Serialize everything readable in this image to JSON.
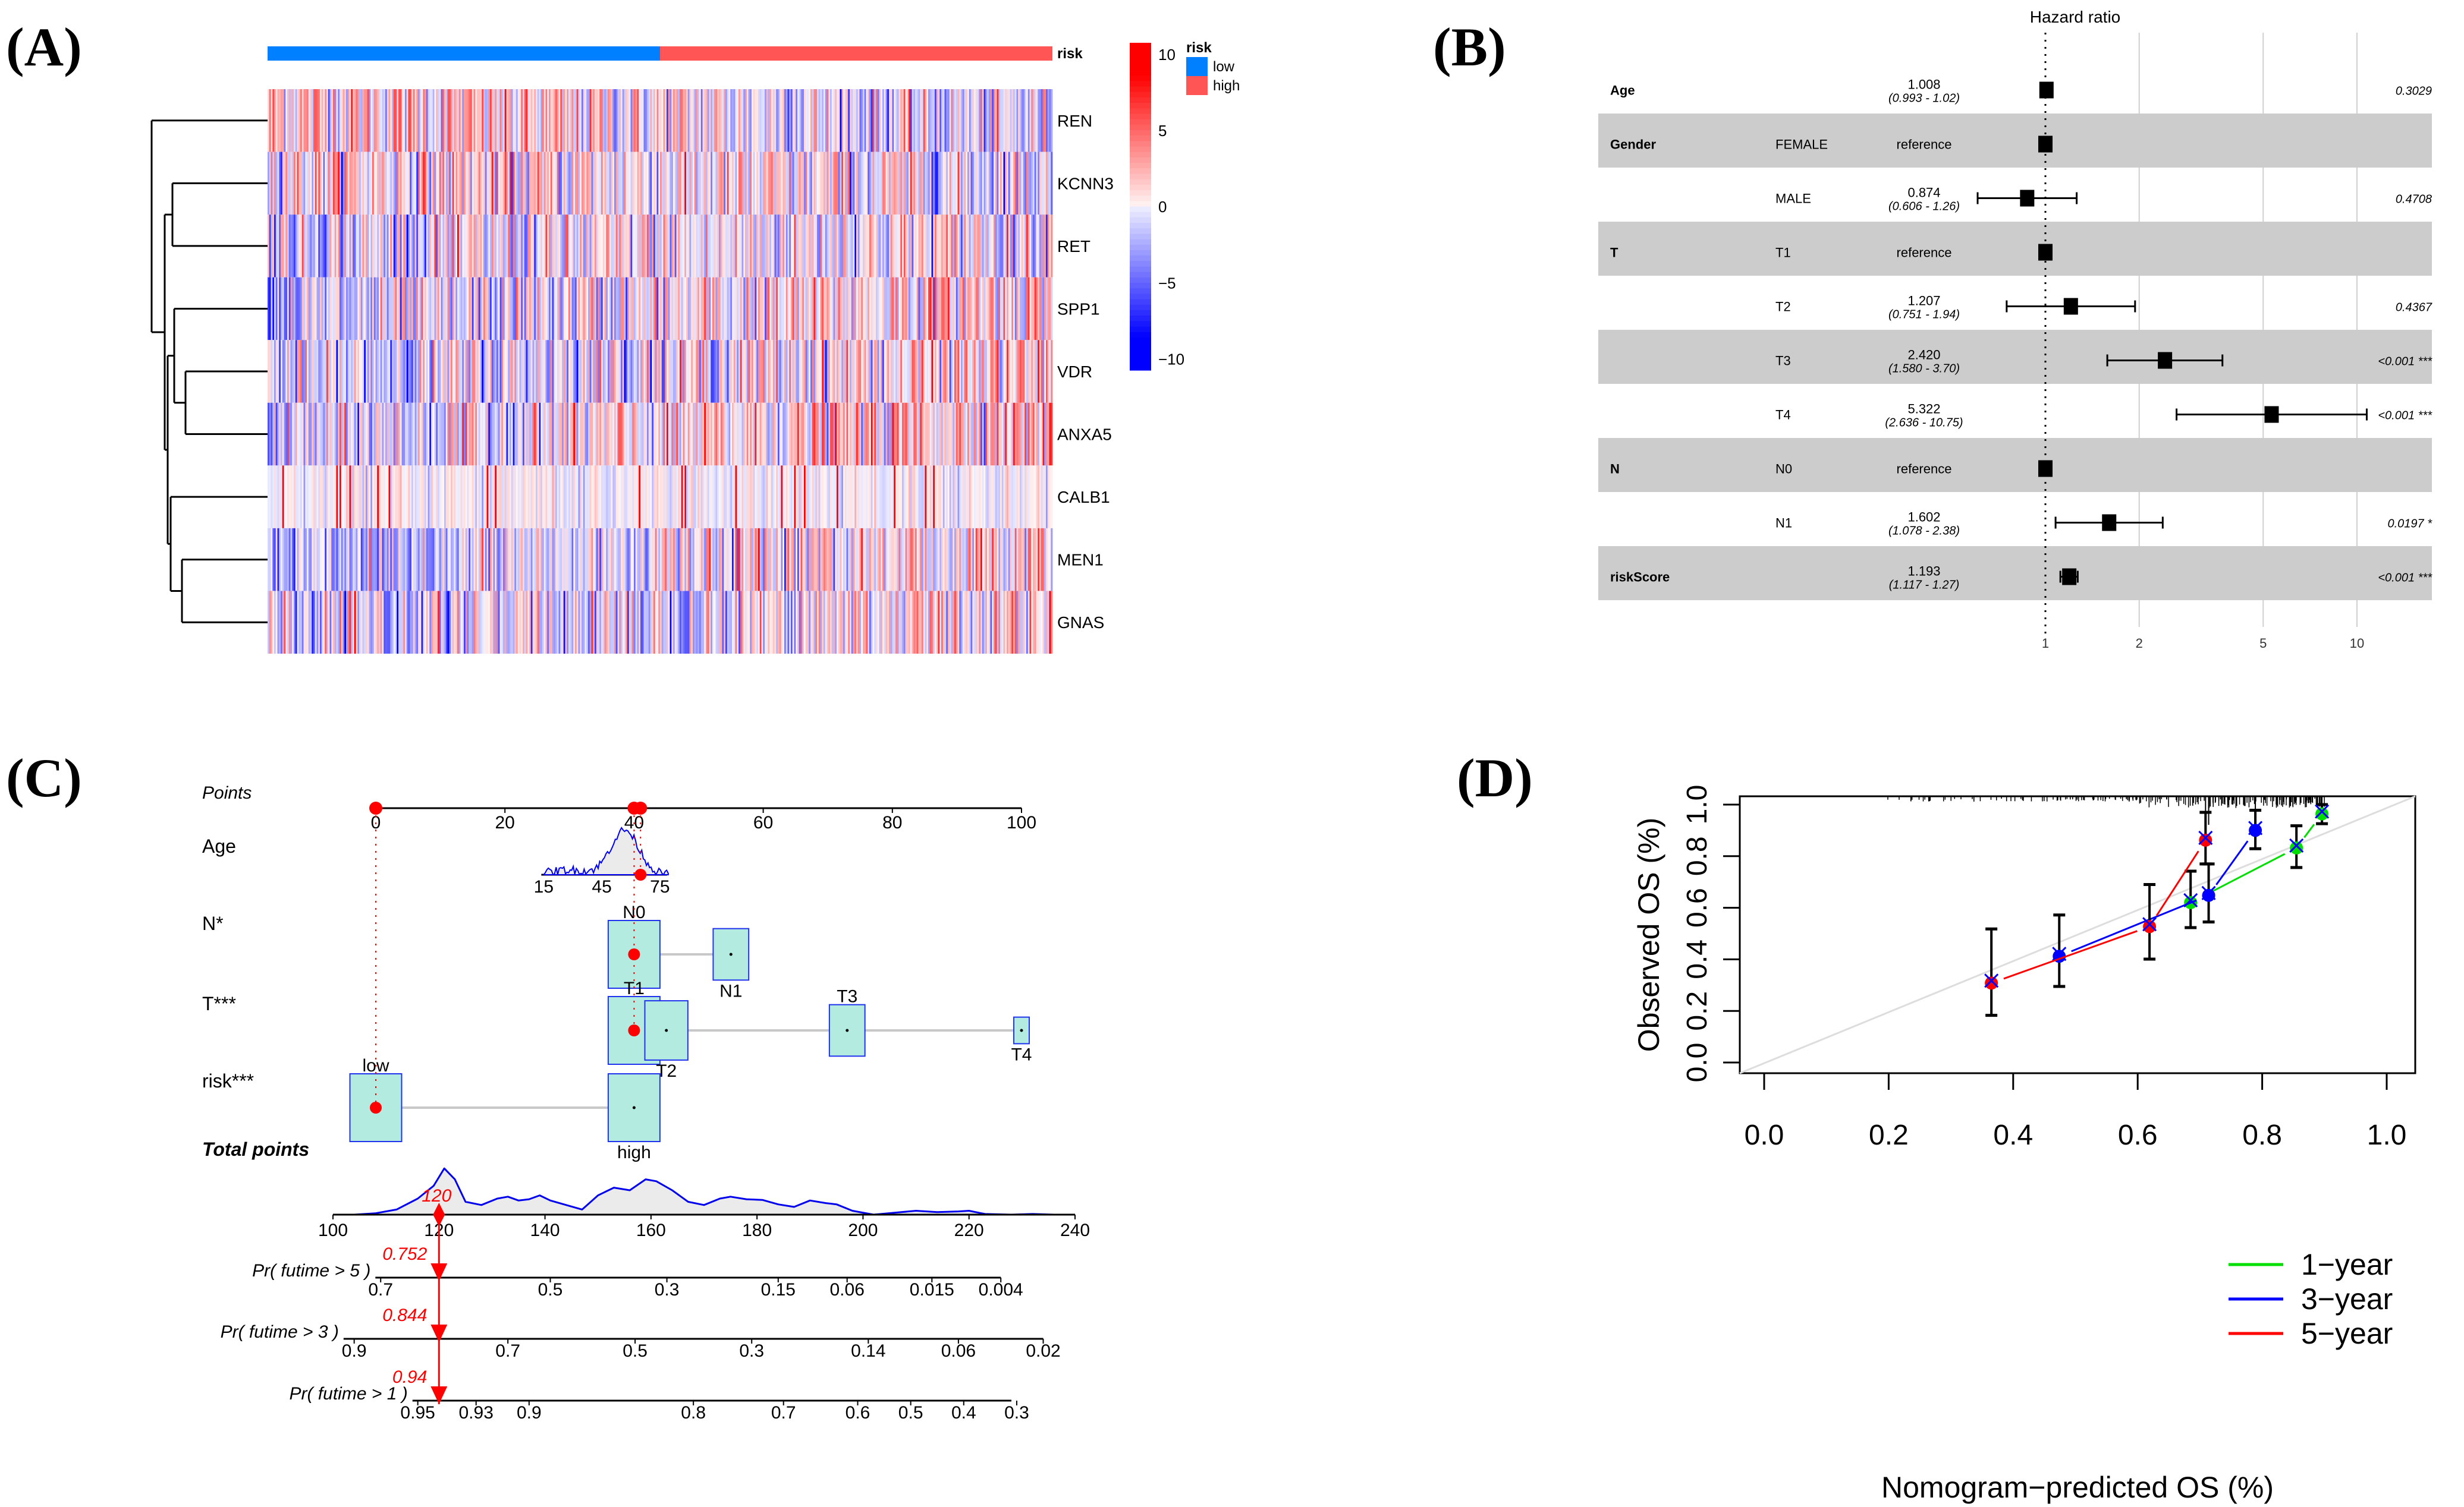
{
  "panels": {
    "A": "(A)",
    "B": "(B)",
    "C": "(C)",
    "D": "(D)"
  },
  "chart_data": [
    {
      "panel": "A",
      "type": "heatmap",
      "title": "",
      "rows": [
        "REN",
        "KCNN3",
        "RET",
        "SPP1",
        "VDR",
        "ANXA5",
        "CALB1",
        "MEN1",
        "GNAS"
      ],
      "column_annotation": {
        "name": "risk",
        "groups": [
          {
            "label": "low",
            "color": "#0080ff",
            "fraction": 0.5
          },
          {
            "label": "high",
            "color": "#ff5555",
            "fraction": 0.5
          }
        ]
      },
      "row_trend": [
        {
          "gene": "REN",
          "low_mean": 1.2,
          "high_mean": -0.8
        },
        {
          "gene": "KCNN3",
          "low_mean": 0.8,
          "high_mean": -0.4
        },
        {
          "gene": "RET",
          "low_mean": -0.6,
          "high_mean": 0.4
        },
        {
          "gene": "SPP1",
          "low_mean": -1.4,
          "high_mean": 1.2
        },
        {
          "gene": "VDR",
          "low_mean": -1.0,
          "high_mean": 0.9
        },
        {
          "gene": "ANXA5",
          "low_mean": -0.9,
          "high_mean": 1.5
        },
        {
          "gene": "CALB1",
          "low_mean": -0.1,
          "high_mean": 0.0
        },
        {
          "gene": "MEN1",
          "low_mean": -1.3,
          "high_mean": 1.0
        },
        {
          "gene": "GNAS",
          "low_mean": -1.2,
          "high_mean": 0.9
        }
      ],
      "color_scale": {
        "min": -10,
        "max": 10,
        "low_color": "#0000ff",
        "mid_color": "#f5f5ff",
        "high_color": "#ff0000",
        "ticks": [
          "10",
          "5",
          "0",
          "−5",
          "−10"
        ],
        "tick_values": [
          10,
          5,
          0,
          -5,
          -10
        ]
      },
      "legend": {
        "title": "risk",
        "items": [
          {
            "label": "low",
            "color": "#0080ff"
          },
          {
            "label": "high",
            "color": "#ff5555"
          }
        ]
      },
      "annotation_label": "risk",
      "dendrogram": "row clustering: REN | ((KCNN3,RET),((SPP1,(VDR,ANXA5)),(CALB1,(MEN1,GNAS))))"
    },
    {
      "panel": "B",
      "type": "forest",
      "title": "Hazard ratio",
      "xscale": "log",
      "xticks": [
        1,
        2,
        5,
        10
      ],
      "reference_line": 1,
      "rows": [
        {
          "var": "Age",
          "level": "",
          "hr": 1.008,
          "lo": 0.993,
          "hi": 1.02,
          "hr_text": "1.008",
          "ci_text": "(0.993 -  1.02)",
          "p": "0.3029",
          "shaded": false
        },
        {
          "var": "Gender",
          "level": "FEMALE",
          "hr": 1.0,
          "lo": null,
          "hi": null,
          "hr_text": "reference",
          "ci_text": "",
          "p": "",
          "shaded": true
        },
        {
          "var": "",
          "level": "MALE",
          "hr": 0.874,
          "lo": 0.606,
          "hi": 1.26,
          "hr_text": "0.874",
          "ci_text": "(0.606 -  1.26)",
          "p": "0.4708",
          "shaded": false
        },
        {
          "var": "T",
          "level": "T1",
          "hr": 1.0,
          "lo": null,
          "hi": null,
          "hr_text": "reference",
          "ci_text": "",
          "p": "",
          "shaded": true
        },
        {
          "var": "",
          "level": "T2",
          "hr": 1.207,
          "lo": 0.751,
          "hi": 1.94,
          "hr_text": "1.207",
          "ci_text": "(0.751 -  1.94)",
          "p": "0.4367",
          "shaded": false
        },
        {
          "var": "",
          "level": "T3",
          "hr": 2.42,
          "lo": 1.58,
          "hi": 3.7,
          "hr_text": "2.420",
          "ci_text": "(1.580 -  3.70)",
          "p": "<0.001 ***",
          "shaded": true
        },
        {
          "var": "",
          "level": "T4",
          "hr": 5.322,
          "lo": 2.636,
          "hi": 10.75,
          "hr_text": "5.322",
          "ci_text": "(2.636 - 10.75)",
          "p": "<0.001 ***",
          "shaded": false
        },
        {
          "var": "N",
          "level": "N0",
          "hr": 1.0,
          "lo": null,
          "hi": null,
          "hr_text": "reference",
          "ci_text": "",
          "p": "",
          "shaded": true
        },
        {
          "var": "",
          "level": "N1",
          "hr": 1.602,
          "lo": 1.078,
          "hi": 2.38,
          "hr_text": "1.602",
          "ci_text": "(1.078 -  2.38)",
          "p": "0.0197 *",
          "shaded": false
        },
        {
          "var": "riskScore",
          "level": "",
          "hr": 1.193,
          "lo": 1.117,
          "hi": 1.27,
          "hr_text": "1.193",
          "ci_text": "(1.117 -  1.27)",
          "p": "<0.001 ***",
          "shaded": true
        }
      ]
    },
    {
      "panel": "C",
      "type": "nomogram",
      "points_axis": {
        "label": "Points",
        "ticks": [
          0,
          20,
          40,
          60,
          80,
          100
        ]
      },
      "variables": [
        {
          "label": "Age",
          "type": "continuous",
          "ticks": [
            {
              "label": "15",
              "points": 26
            },
            {
              "label": "45",
              "points": 35
            },
            {
              "label": "75",
              "points": 44
            }
          ],
          "selected_points": 41
        },
        {
          "label": "N*",
          "type": "categorical",
          "levels": [
            {
              "label": "N0",
              "points": 40,
              "size": 1.0,
              "label_pos": "above"
            },
            {
              "label": "N1",
              "points": 55,
              "size": 0.55,
              "label_pos": "below"
            }
          ],
          "selected_points": 40
        },
        {
          "label": "T***",
          "type": "categorical",
          "levels": [
            {
              "label": "T1",
              "points": 40,
              "size": 1.0,
              "label_pos": "above"
            },
            {
              "label": "T2",
              "points": 45,
              "size": 0.75,
              "label_pos": "below"
            },
            {
              "label": "T3",
              "points": 73,
              "size": 0.55,
              "label_pos": "above"
            },
            {
              "label": "T4",
              "points": 100,
              "size": 0.12,
              "label_pos": "below"
            }
          ],
          "selected_points": 40
        },
        {
          "label": "risk***",
          "type": "categorical",
          "levels": [
            {
              "label": "low",
              "points": 0,
              "size": 1.0,
              "label_pos": "above"
            },
            {
              "label": "high",
              "points": 40,
              "size": 1.0,
              "label_pos": "below"
            }
          ],
          "selected_points": 0
        }
      ],
      "total_points": {
        "label": "Total points",
        "ticks": [
          100,
          120,
          140,
          160,
          180,
          200,
          220,
          240
        ],
        "selected": 120,
        "selected_label": "120"
      },
      "total_density": [
        [
          104,
          0
        ],
        [
          108,
          0.02
        ],
        [
          112,
          0.08
        ],
        [
          116,
          0.25
        ],
        [
          119,
          0.45
        ],
        [
          121,
          0.72
        ],
        [
          123,
          0.55
        ],
        [
          125,
          0.2
        ],
        [
          128,
          0.15
        ],
        [
          131,
          0.25
        ],
        [
          133,
          0.28
        ],
        [
          135,
          0.22
        ],
        [
          137,
          0.24
        ],
        [
          139,
          0.3
        ],
        [
          141,
          0.22
        ],
        [
          144,
          0.15
        ],
        [
          147,
          0.08
        ],
        [
          150,
          0.3
        ],
        [
          153,
          0.42
        ],
        [
          156,
          0.38
        ],
        [
          159,
          0.55
        ],
        [
          161,
          0.52
        ],
        [
          164,
          0.38
        ],
        [
          167,
          0.2
        ],
        [
          170,
          0.15
        ],
        [
          173,
          0.25
        ],
        [
          175,
          0.28
        ],
        [
          178,
          0.24
        ],
        [
          181,
          0.23
        ],
        [
          184,
          0.16
        ],
        [
          187,
          0.12
        ],
        [
          190,
          0.22
        ],
        [
          193,
          0.18
        ],
        [
          195,
          0.16
        ],
        [
          198,
          0.06
        ],
        [
          202,
          0.0
        ],
        [
          206,
          0.03
        ],
        [
          210,
          0.06
        ],
        [
          214,
          0.04
        ],
        [
          218,
          0.05
        ],
        [
          220,
          0.06
        ],
        [
          223,
          0.01
        ],
        [
          228,
          0.0
        ],
        [
          232,
          0.01
        ],
        [
          236,
          0.0
        ]
      ],
      "prob_axes": [
        {
          "label": "Pr( futime > 5 )",
          "ticks": [
            {
              "label": "0.7",
              "tp": 109
            },
            {
              "label": "0.5",
              "tp": 141
            },
            {
              "label": "0.3",
              "tp": 163
            },
            {
              "label": "0.15",
              "tp": 184
            },
            {
              "label": "0.06",
              "tp": 197
            },
            {
              "label": "0.015",
              "tp": 213
            },
            {
              "label": "0.004",
              "tp": 226
            }
          ],
          "range_tp": [
            108,
            226
          ],
          "selected_label": "0.752"
        },
        {
          "label": "Pr( futime > 3 )",
          "ticks": [
            {
              "label": "0.9",
              "tp": 104
            },
            {
              "label": "0.7",
              "tp": 133
            },
            {
              "label": "0.5",
              "tp": 157
            },
            {
              "label": "0.3",
              "tp": 179
            },
            {
              "label": "0.14",
              "tp": 201
            },
            {
              "label": "0.06",
              "tp": 218
            },
            {
              "label": "0.02",
              "tp": 234
            }
          ],
          "range_tp": [
            102,
            234
          ],
          "selected_label": "0.844"
        },
        {
          "label": "Pr( futime > 1 )",
          "ticks": [
            {
              "label": "0.95",
              "tp": 116
            },
            {
              "label": "0.93",
              "tp": 127
            },
            {
              "label": "0.9",
              "tp": 137
            },
            {
              "label": "0.8",
              "tp": 168
            },
            {
              "label": "0.7",
              "tp": 185
            },
            {
              "label": "0.6",
              "tp": 199
            },
            {
              "label": "0.5",
              "tp": 209
            },
            {
              "label": "0.4",
              "tp": 219
            },
            {
              "label": "0.3",
              "tp": 229
            }
          ],
          "range_tp": [
            115,
            228
          ],
          "selected_label": "0.94"
        }
      ]
    },
    {
      "panel": "D",
      "type": "line",
      "title": "",
      "xlabel": "Nomogram−predicted OS (%)",
      "ylabel": "Observed OS (%)",
      "xlim": [
        0,
        1
      ],
      "ylim": [
        0,
        1
      ],
      "xticks": [
        "0.0",
        "0.2",
        "0.4",
        "0.6",
        "0.8",
        "1.0"
      ],
      "yticks": [
        "0.0",
        "0.2",
        "0.4",
        "0.6",
        "0.8",
        "1.0"
      ],
      "diagonal": true,
      "legend_position": "bottom-right",
      "series": [
        {
          "name": "1−year",
          "color": "#00dd00",
          "points": [
            {
              "x": 0.685,
              "y": 0.62,
              "lo": 0.523,
              "hi": 0.742
            },
            {
              "x": 0.855,
              "y": 0.832,
              "lo": 0.756,
              "hi": 0.918
            },
            {
              "x": 0.896,
              "y": 0.964,
              "lo": 0.926,
              "hi": 1.0
            }
          ]
        },
        {
          "name": "3−year",
          "color": "#0000ff",
          "points": [
            {
              "x": 0.474,
              "y": 0.412,
              "lo": 0.295,
              "hi": 0.572
            },
            {
              "x": 0.714,
              "y": 0.648,
              "lo": 0.545,
              "hi": 0.77
            },
            {
              "x": 0.789,
              "y": 0.9,
              "lo": 0.829,
              "hi": 0.978
            }
          ]
        },
        {
          "name": "5−year",
          "color": "#ff0000",
          "points": [
            {
              "x": 0.365,
              "y": 0.308,
              "lo": 0.183,
              "hi": 0.518
            },
            {
              "x": 0.619,
              "y": 0.527,
              "lo": 0.401,
              "hi": 0.69
            },
            {
              "x": 0.709,
              "y": 0.862,
              "lo": 0.77,
              "hi": 0.97
            }
          ]
        }
      ]
    }
  ]
}
